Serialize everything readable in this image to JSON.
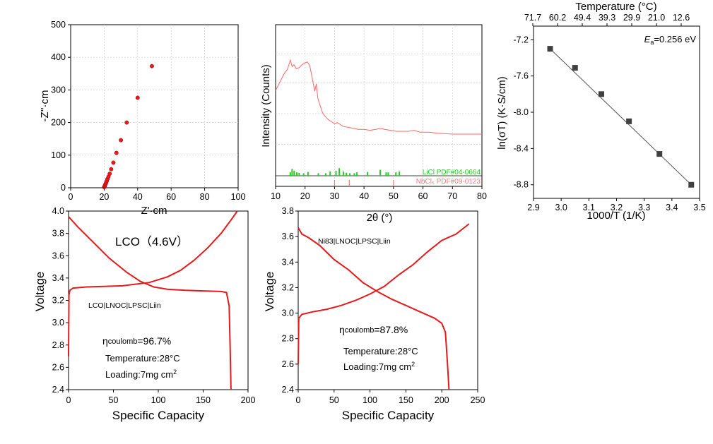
{
  "colors": {
    "red": "#e41a1c",
    "green": "#22cc22",
    "pink": "#ee8080",
    "gray": "#404040",
    "xrd": "#ff6666"
  },
  "chart_data": [
    {
      "id": "nyquist",
      "type": "scatter",
      "xlabel": "Z'·cm",
      "ylabel": "-Z''·cm",
      "xlim": [
        0,
        100
      ],
      "ylim": [
        0,
        500
      ],
      "xticks": [
        "0",
        "20",
        "40",
        "60",
        "80",
        "100"
      ],
      "yticks": [
        "0",
        "100",
        "200",
        "300",
        "400",
        "500"
      ],
      "series": [
        {
          "points": [
            [
              20.0,
              2
            ],
            [
              20.2,
              4
            ],
            [
              20.4,
              6
            ],
            [
              20.6,
              9
            ],
            [
              20.9,
              12
            ],
            [
              21.2,
              16
            ],
            [
              21.6,
              21
            ],
            [
              22.0,
              27
            ],
            [
              22.6,
              34
            ],
            [
              23.3,
              43
            ],
            [
              24.2,
              57
            ],
            [
              25.5,
              77
            ],
            [
              27.3,
              107
            ],
            [
              30.0,
              146
            ],
            [
              33.5,
              200
            ],
            [
              40.0,
              276
            ],
            [
              48.5,
              373
            ]
          ]
        }
      ],
      "grid": true
    },
    {
      "id": "xrd",
      "type": "line",
      "xlabel": "2θ (°)",
      "ylabel": "Intensity (Counts)",
      "xlim": [
        10,
        80
      ],
      "xticks": [
        "10",
        "20",
        "30",
        "40",
        "50",
        "60",
        "70",
        "80"
      ],
      "reference_labels": [
        "LiCl PDF#04-0664",
        "NbCl₅ PDF#09-0123"
      ],
      "licl_peaks": [
        [
          15.0,
          0.4
        ],
        [
          15.6,
          0.8
        ],
        [
          16.3,
          0.6
        ],
        [
          17.2,
          0.4
        ],
        [
          18.0,
          0.35
        ],
        [
          19.5,
          0.3
        ],
        [
          21.0,
          0.45
        ],
        [
          24.5,
          0.3
        ],
        [
          27.0,
          0.3
        ],
        [
          28.5,
          0.5
        ],
        [
          30.5,
          0.6
        ],
        [
          31.6,
          0.9
        ],
        [
          33.0,
          0.5
        ],
        [
          34.0,
          0.35
        ],
        [
          35.2,
          0.3
        ],
        [
          36.7,
          0.3
        ],
        [
          37.6,
          0.4
        ],
        [
          41.2,
          0.45
        ],
        [
          45.5,
          0.7
        ],
        [
          47.5,
          0.4
        ],
        [
          48.2,
          0.4
        ],
        [
          50.8,
          0.4
        ],
        [
          52.0,
          0.5
        ]
      ],
      "nbcl_peaks": [
        30.0,
        35.0,
        50.0
      ],
      "pattern": [
        [
          10,
          0.68
        ],
        [
          11,
          0.74
        ],
        [
          12,
          0.8
        ],
        [
          13,
          0.86
        ],
        [
          14,
          0.9
        ],
        [
          15,
          1.0
        ],
        [
          15.6,
          0.93
        ],
        [
          16.2,
          0.95
        ],
        [
          17,
          0.91
        ],
        [
          18,
          0.92
        ],
        [
          19,
          0.95
        ],
        [
          20,
          0.97
        ],
        [
          20.8,
          0.98
        ],
        [
          21.6,
          0.94
        ],
        [
          22.5,
          0.8
        ],
        [
          23.3,
          0.67
        ],
        [
          23.8,
          0.75
        ],
        [
          24.3,
          0.6
        ],
        [
          25,
          0.53
        ],
        [
          26,
          0.44
        ],
        [
          27,
          0.4
        ],
        [
          28,
          0.37
        ],
        [
          29,
          0.35
        ],
        [
          30,
          0.33
        ],
        [
          31,
          0.34
        ],
        [
          32,
          0.32
        ],
        [
          33,
          0.3
        ],
        [
          35,
          0.29
        ],
        [
          38,
          0.27
        ],
        [
          40,
          0.27
        ],
        [
          42,
          0.26
        ],
        [
          44,
          0.27
        ],
        [
          45.5,
          0.28
        ],
        [
          47,
          0.27
        ],
        [
          49,
          0.26
        ],
        [
          51,
          0.25
        ],
        [
          53,
          0.25
        ],
        [
          55,
          0.25
        ],
        [
          57,
          0.26
        ],
        [
          59,
          0.24
        ],
        [
          62,
          0.24
        ],
        [
          65,
          0.23
        ],
        [
          70,
          0.22
        ],
        [
          75,
          0.22
        ],
        [
          80,
          0.22
        ]
      ],
      "grid": true
    },
    {
      "id": "arrhenius",
      "type": "scatter",
      "xlabel": "1000/T (1/K)",
      "ylabel": "ln(σT) (K·S/cm)",
      "top_label": "Temperature (°C)",
      "top_ticks": [
        "71.7",
        "60.2",
        "49.4",
        "39.3",
        "29.9",
        "21.0",
        "12.6"
      ],
      "annotation": "E",
      "annotation_sub": "a",
      "annotation_rest": "=0.256 eV",
      "xlim": [
        2.9,
        3.5
      ],
      "ylim": [
        -8.95,
        -7.05
      ],
      "xticks": [
        "2.9",
        "3.0",
        "3.1",
        "3.2",
        "3.3",
        "3.4",
        "3.5"
      ],
      "yticks": [
        "-7.2",
        "-7.6",
        "-8.0",
        "-8.4",
        "-8.8"
      ],
      "points": [
        [
          2.96,
          -7.3
        ],
        [
          3.05,
          -7.51
        ],
        [
          3.145,
          -7.8
        ],
        [
          3.245,
          -8.1
        ],
        [
          3.355,
          -8.46
        ],
        [
          3.47,
          -8.8
        ]
      ],
      "fit": [
        [
          2.96,
          -7.3
        ],
        [
          3.47,
          -8.8
        ]
      ]
    },
    {
      "id": "lco",
      "type": "line",
      "title": "LCO（4.6V）",
      "cell_label": "LCO|LNOC|LPSC|Liin",
      "coulomb_prefix": "η",
      "coulomb_sub": "coulomb",
      "coulomb_value": "=96.7%",
      "temperature": "Temperature:28°C",
      "loading_text": "Loading:7mg cm",
      "loading_sup": "2",
      "xlabel": "Specific Capacity",
      "ylabel": "Voltage",
      "xlim": [
        0,
        200
      ],
      "ylim": [
        2.4,
        4.0
      ],
      "xticks": [
        "0",
        "50",
        "100",
        "150",
        "200"
      ],
      "yticks": [
        "2.4",
        "2.6",
        "2.8",
        "3.0",
        "3.2",
        "3.4",
        "3.6",
        "3.8",
        "4.0"
      ],
      "series": [
        {
          "points": [
            [
              0,
              2.7
            ],
            [
              0.5,
              3.25
            ],
            [
              1.5,
              3.29
            ],
            [
              5,
              3.31
            ],
            [
              20,
              3.32
            ],
            [
              60,
              3.33
            ],
            [
              90,
              3.36
            ],
            [
              110,
              3.41
            ],
            [
              125,
              3.47
            ],
            [
              140,
              3.56
            ],
            [
              155,
              3.67
            ],
            [
              170,
              3.8
            ],
            [
              182,
              3.93
            ],
            [
              188,
              4.0
            ]
          ]
        },
        {
          "points": [
            [
              0,
              3.95
            ],
            [
              10,
              3.86
            ],
            [
              25,
              3.74
            ],
            [
              45,
              3.58
            ],
            [
              65,
              3.45
            ],
            [
              80,
              3.37
            ],
            [
              95,
              3.32
            ],
            [
              110,
              3.3
            ],
            [
              130,
              3.29
            ],
            [
              150,
              3.285
            ],
            [
              170,
              3.28
            ],
            [
              176,
              3.27
            ],
            [
              179,
              3.15
            ],
            [
              180,
              2.8
            ],
            [
              181,
              2.4
            ]
          ]
        }
      ]
    },
    {
      "id": "ni83",
      "type": "line",
      "cell_label": "Ni83|LNOC|LPSC|Liin",
      "coulomb_prefix": "η",
      "coulomb_sub": "coulomb",
      "coulomb_value": "=87.8%",
      "temperature": "Temperature:28°C",
      "loading_text": "Loading:7mg cm",
      "loading_sup": "2",
      "xlabel": "Specific Capacity",
      "ylabel": "Voltage",
      "xlim": [
        0,
        250
      ],
      "ylim": [
        2.4,
        3.8
      ],
      "xticks": [
        "0",
        "50",
        "100",
        "150",
        "200",
        "250"
      ],
      "yticks": [
        "2.4",
        "2.6",
        "2.8",
        "3.0",
        "3.2",
        "3.4",
        "3.6",
        "3.8"
      ],
      "series": [
        {
          "points": [
            [
              0,
              2.6
            ],
            [
              0.8,
              2.96
            ],
            [
              5,
              2.99
            ],
            [
              20,
              3.01
            ],
            [
              40,
              3.03
            ],
            [
              60,
              3.06
            ],
            [
              80,
              3.1
            ],
            [
              100,
              3.15
            ],
            [
              120,
              3.21
            ],
            [
              140,
              3.3
            ],
            [
              160,
              3.38
            ],
            [
              180,
              3.48
            ],
            [
              200,
              3.57
            ],
            [
              220,
              3.62
            ],
            [
              238,
              3.7
            ]
          ]
        },
        {
          "points": [
            [
              0,
              3.67
            ],
            [
              5,
              3.62
            ],
            [
              15,
              3.59
            ],
            [
              30,
              3.53
            ],
            [
              50,
              3.42
            ],
            [
              70,
              3.34
            ],
            [
              90,
              3.24
            ],
            [
              110,
              3.17
            ],
            [
              130,
              3.11
            ],
            [
              150,
              3.06
            ],
            [
              170,
              3.01
            ],
            [
              190,
              2.96
            ],
            [
              200,
              2.92
            ],
            [
              205,
              2.85
            ],
            [
              208,
              2.6
            ],
            [
              210,
              2.4
            ]
          ]
        }
      ]
    }
  ]
}
